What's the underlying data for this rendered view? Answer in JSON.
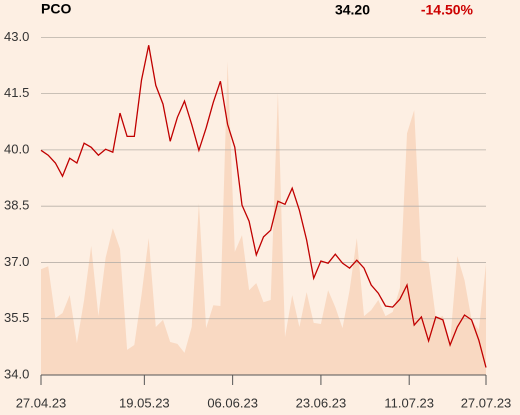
{
  "chart_data": {
    "type": "line",
    "title": "PCO",
    "last_price": "34.20",
    "change": "-14.50%",
    "change_color": "#cc0000",
    "color": "#c00000",
    "area_color": "#f9d9c2",
    "values": [
      39.99,
      39.86,
      39.65,
      39.3,
      39.78,
      39.65,
      40.18,
      40.07,
      39.86,
      40.02,
      39.94,
      40.98,
      40.36,
      40.36,
      41.86,
      42.79,
      41.72,
      41.22,
      40.23,
      40.87,
      41.3,
      40.68,
      39.99,
      40.58,
      41.27,
      41.83,
      40.68,
      40.07,
      38.53,
      38.1,
      37.2,
      37.68,
      37.86,
      38.63,
      38.55,
      38.98,
      38.39,
      37.6,
      36.58,
      37.04,
      36.98,
      37.22,
      36.98,
      36.85,
      37.06,
      36.85,
      36.4,
      36.18,
      35.84,
      35.81,
      36.02,
      36.4,
      35.33,
      35.55,
      34.91,
      35.55,
      35.47,
      34.8,
      35.28,
      35.6,
      35.47,
      34.93,
      34.2
    ],
    "volume": [
      36.82,
      36.9,
      35.52,
      35.65,
      36.13,
      34.85,
      36.0,
      37.44,
      35.57,
      37.12,
      37.91,
      37.36,
      34.67,
      34.8,
      36.13,
      37.65,
      35.28,
      35.47,
      34.88,
      34.83,
      34.59,
      35.28,
      38.58,
      35.25,
      35.86,
      35.84,
      42.36,
      37.28,
      37.73,
      36.26,
      36.45,
      35.94,
      36.0,
      41.54,
      35.01,
      36.13,
      35.28,
      36.21,
      35.39,
      35.36,
      36.26,
      35.81,
      35.25,
      36.26,
      37.65,
      35.57,
      35.73,
      36.0,
      35.57,
      35.68,
      36.32,
      40.44,
      41.06,
      37.06,
      37.01,
      35.52,
      35.57,
      34.88,
      37.17,
      36.53,
      35.47,
      35.2,
      36.96
    ],
    "xlim": [
      0,
      62
    ],
    "xticks": [
      {
        "value": 0,
        "label": "27.04.23"
      },
      {
        "value": 14.4,
        "label": "19.05.23"
      },
      {
        "value": 26.7,
        "label": "06.06.23"
      },
      {
        "value": 39,
        "label": "23.06.23"
      },
      {
        "value": 51.3,
        "label": "11.07.23"
      },
      {
        "value": 62,
        "label": "27.07.23"
      }
    ],
    "ylim": [
      34,
      43.3
    ],
    "yticks": [
      {
        "value": 34,
        "label": "34.0"
      },
      {
        "value": 35.5,
        "label": "35.5"
      },
      {
        "value": 37,
        "label": "37.0"
      },
      {
        "value": 38.5,
        "label": "38.5"
      },
      {
        "value": 40,
        "label": "40.0"
      },
      {
        "value": 41.5,
        "label": "41.5"
      },
      {
        "value": 43,
        "label": "43.0"
      }
    ],
    "grid": true
  }
}
